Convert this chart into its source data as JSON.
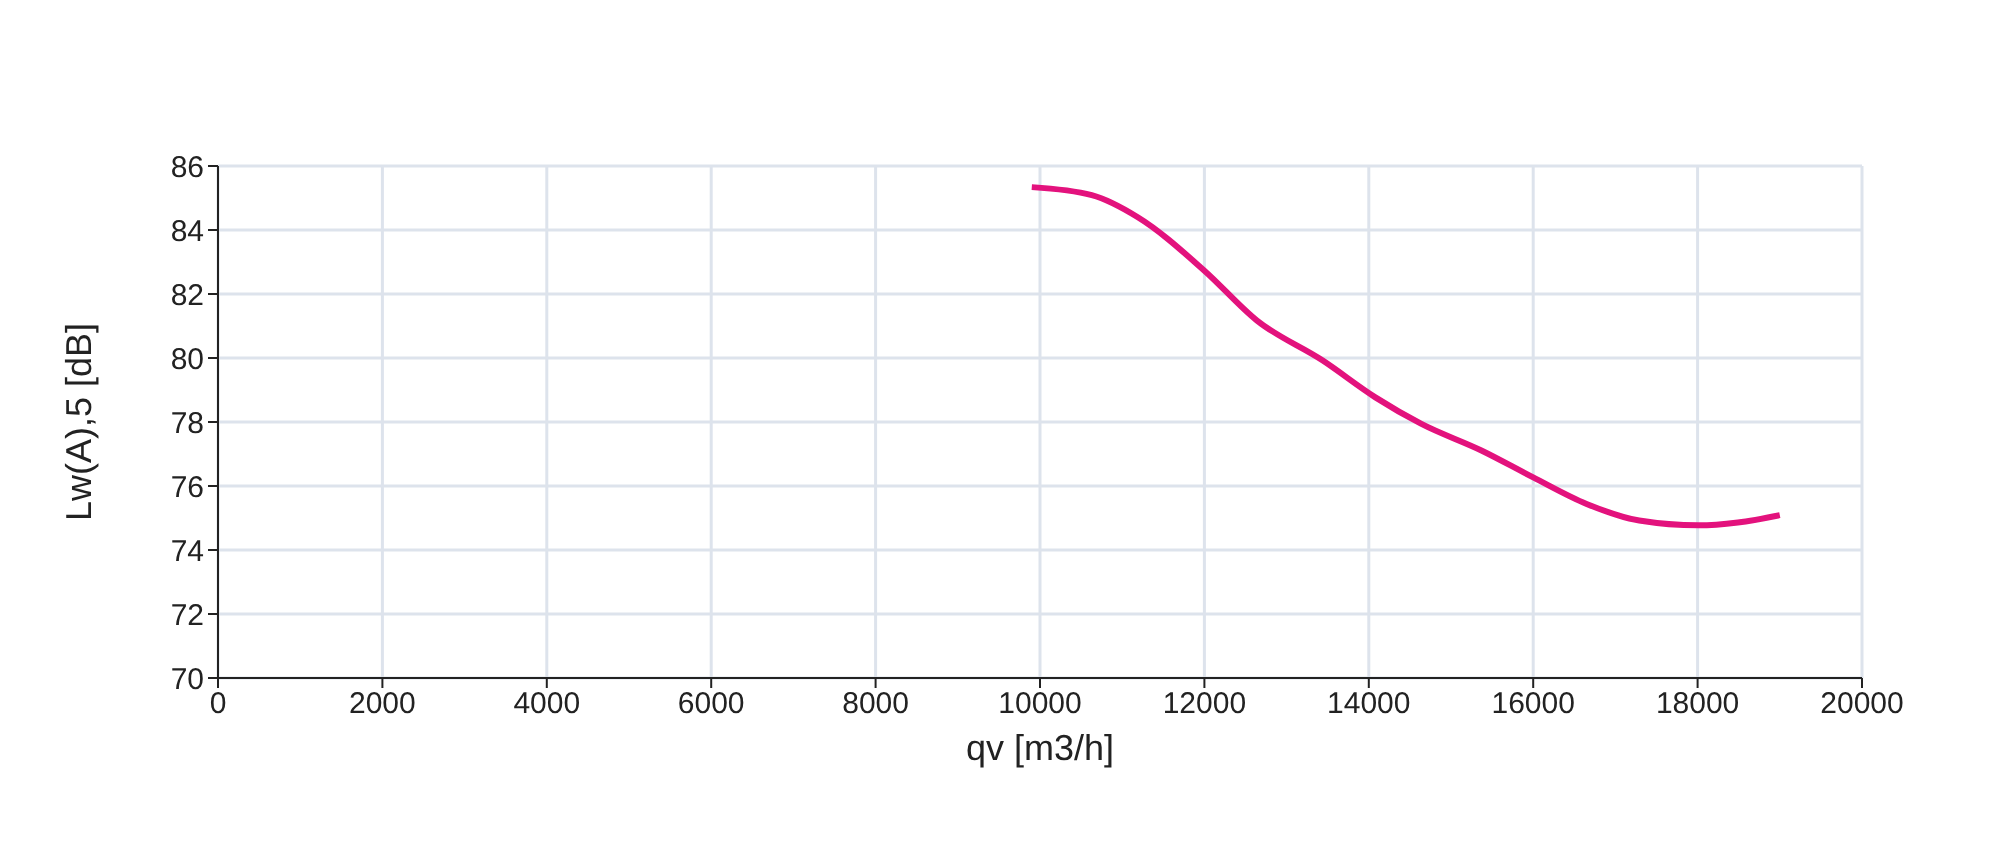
{
  "chart_data": {
    "type": "line",
    "xlabel": "qv [m3/h]",
    "ylabel": "Lw(A),5 [dB]",
    "xlim": [
      0,
      20000
    ],
    "xticks": [
      0,
      2000,
      4000,
      6000,
      8000,
      10000,
      12000,
      14000,
      16000,
      18000,
      20000
    ],
    "ylim": [
      70,
      86
    ],
    "yticks": [
      70,
      72,
      74,
      76,
      78,
      80,
      82,
      84,
      86
    ],
    "grid": true,
    "marker": "none",
    "line_style": "solid",
    "legend": false,
    "series": [
      {
        "color": "#e3127d",
        "x": [
          9900,
          10630,
          11190,
          12000,
          12640,
          13440,
          14080,
          14640,
          15370,
          16000,
          16650,
          17290,
          18010,
          18490,
          19000
        ],
        "values": [
          85.34,
          85.09,
          84.4,
          82.73,
          81.17,
          79.92,
          78.77,
          77.94,
          77.11,
          76.27,
          75.44,
          74.92,
          74.77,
          74.86,
          75.09
        ]
      }
    ]
  }
}
